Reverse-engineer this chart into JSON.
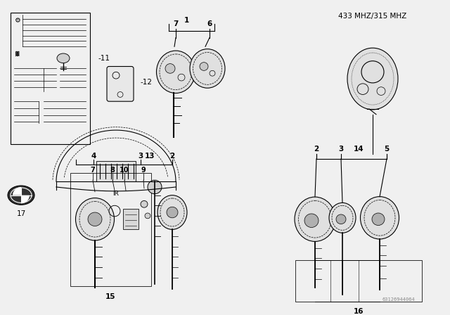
{
  "title": "433 MHZ/315 MHZ",
  "bg_color": "#f0f0f0",
  "line_color": "#000000",
  "text_color": "#000000",
  "watermark": "63126944064"
}
